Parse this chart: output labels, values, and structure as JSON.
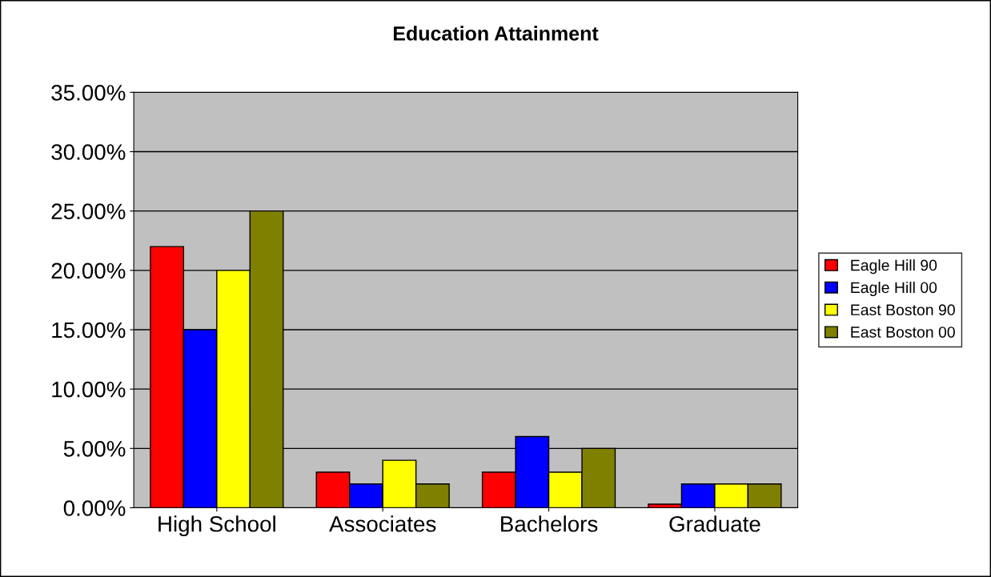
{
  "chart_data": {
    "type": "bar",
    "title": "Education Attainment",
    "categories": [
      "High School",
      "Associates",
      "Bachelors",
      "Graduate"
    ],
    "series": [
      {
        "name": "Eagle Hill 90",
        "color": "#ff0000",
        "values": [
          22,
          3,
          3,
          0.3
        ]
      },
      {
        "name": "Eagle Hill 00",
        "color": "#0000ff",
        "values": [
          15,
          2,
          6,
          2
        ]
      },
      {
        "name": "East Boston 90",
        "color": "#ffff00",
        "values": [
          20,
          4,
          3,
          2
        ]
      },
      {
        "name": "East Boston 00",
        "color": "#808000",
        "values": [
          25,
          2,
          5,
          2
        ]
      }
    ],
    "ylim": [
      0,
      35
    ],
    "yticks": [
      {
        "value": 0,
        "label": "0.00%"
      },
      {
        "value": 5,
        "label": "5.00%"
      },
      {
        "value": 10,
        "label": "10.00%"
      },
      {
        "value": 15,
        "label": "15.00%"
      },
      {
        "value": 20,
        "label": "20.00%"
      },
      {
        "value": 25,
        "label": "25.00%"
      },
      {
        "value": 30,
        "label": "30.00%"
      },
      {
        "value": 35,
        "label": "35.00%"
      }
    ],
    "grid": "y",
    "legend": "right"
  }
}
